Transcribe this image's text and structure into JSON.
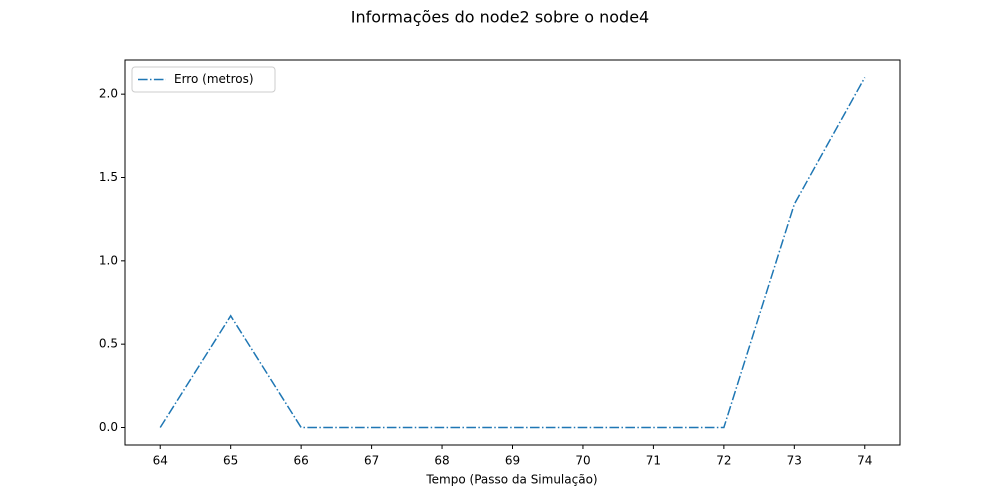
{
  "chart_data": {
    "type": "line",
    "title": "Informações do node2 sobre o node4",
    "x_label": "Tempo (Passo da Simulação)",
    "x": [
      64,
      65,
      66,
      67,
      68,
      69,
      70,
      71,
      72,
      73,
      74
    ],
    "series": [
      {
        "name": "Erro (metros)",
        "color": "#1f77b4",
        "linestyle": "dashdot",
        "values": [
          0,
          0.67,
          0,
          0,
          0,
          0,
          0,
          0,
          0,
          1.34,
          2.1
        ]
      }
    ],
    "xlim": [
      63.5,
      74.5
    ],
    "ylim": [
      -0.105,
      2.205
    ],
    "xticks": [
      64,
      65,
      66,
      67,
      68,
      69,
      70,
      71,
      72,
      73,
      74
    ],
    "yticks": [
      {
        "value": 0,
        "label": "0.0"
      },
      {
        "value": 0.5,
        "label": "0.5"
      },
      {
        "value": 1,
        "label": "1.0"
      },
      {
        "value": 1.5,
        "label": "1.5"
      },
      {
        "value": 2,
        "label": "2.0"
      }
    ],
    "legend": "upper left"
  }
}
